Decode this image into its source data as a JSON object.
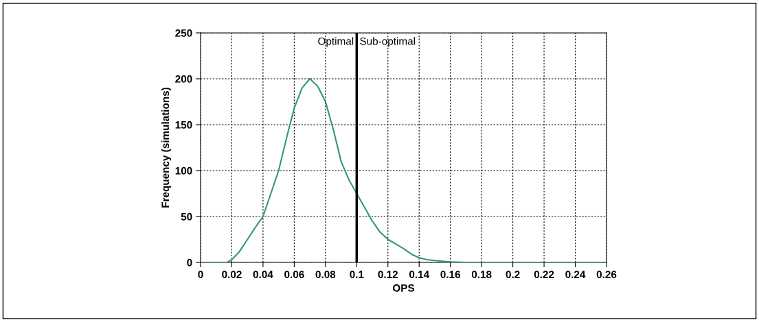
{
  "chart_data": {
    "type": "line",
    "xlabel": "OPS",
    "ylabel": "Frequency (simulations)",
    "series": [
      {
        "color": "#339966",
        "x": [
          0,
          0.017,
          0.02,
          0.025,
          0.03,
          0.035,
          0.04,
          0.045,
          0.05,
          0.055,
          0.06,
          0.065,
          0.07,
          0.075,
          0.08,
          0.085,
          0.09,
          0.095,
          0.1,
          0.105,
          0.11,
          0.115,
          0.12,
          0.125,
          0.13,
          0.135,
          0.14,
          0.145,
          0.15,
          0.16,
          0.17,
          0.26
        ],
        "values": [
          0,
          0,
          3,
          12,
          25,
          38,
          50,
          75,
          100,
          135,
          168,
          190,
          200,
          192,
          175,
          145,
          110,
          90,
          75,
          60,
          45,
          33,
          25,
          20,
          15,
          9,
          5,
          3,
          2,
          0.5,
          0,
          0
        ]
      }
    ],
    "xlim": [
      0,
      0.26
    ],
    "xticks": [
      0,
      0.02,
      0.04,
      0.06,
      0.08,
      0.1,
      0.12,
      0.14,
      0.16,
      0.18,
      0.2,
      0.22,
      0.24,
      0.26
    ],
    "ylim": [
      0,
      250
    ],
    "yticks": [
      0,
      50,
      100,
      150,
      200,
      250
    ],
    "grid": true,
    "marker": "none",
    "line_style": "solid",
    "legend": false,
    "ref_lines": [
      {
        "axis": "x",
        "value": 0.1,
        "color": "#000000",
        "line_style": "solid"
      }
    ],
    "annotations": [
      {
        "text": "Optimal",
        "x": 0.1,
        "y": 240
      },
      {
        "text": "Sub-optimal",
        "x": 0.1,
        "y": 240
      }
    ]
  }
}
